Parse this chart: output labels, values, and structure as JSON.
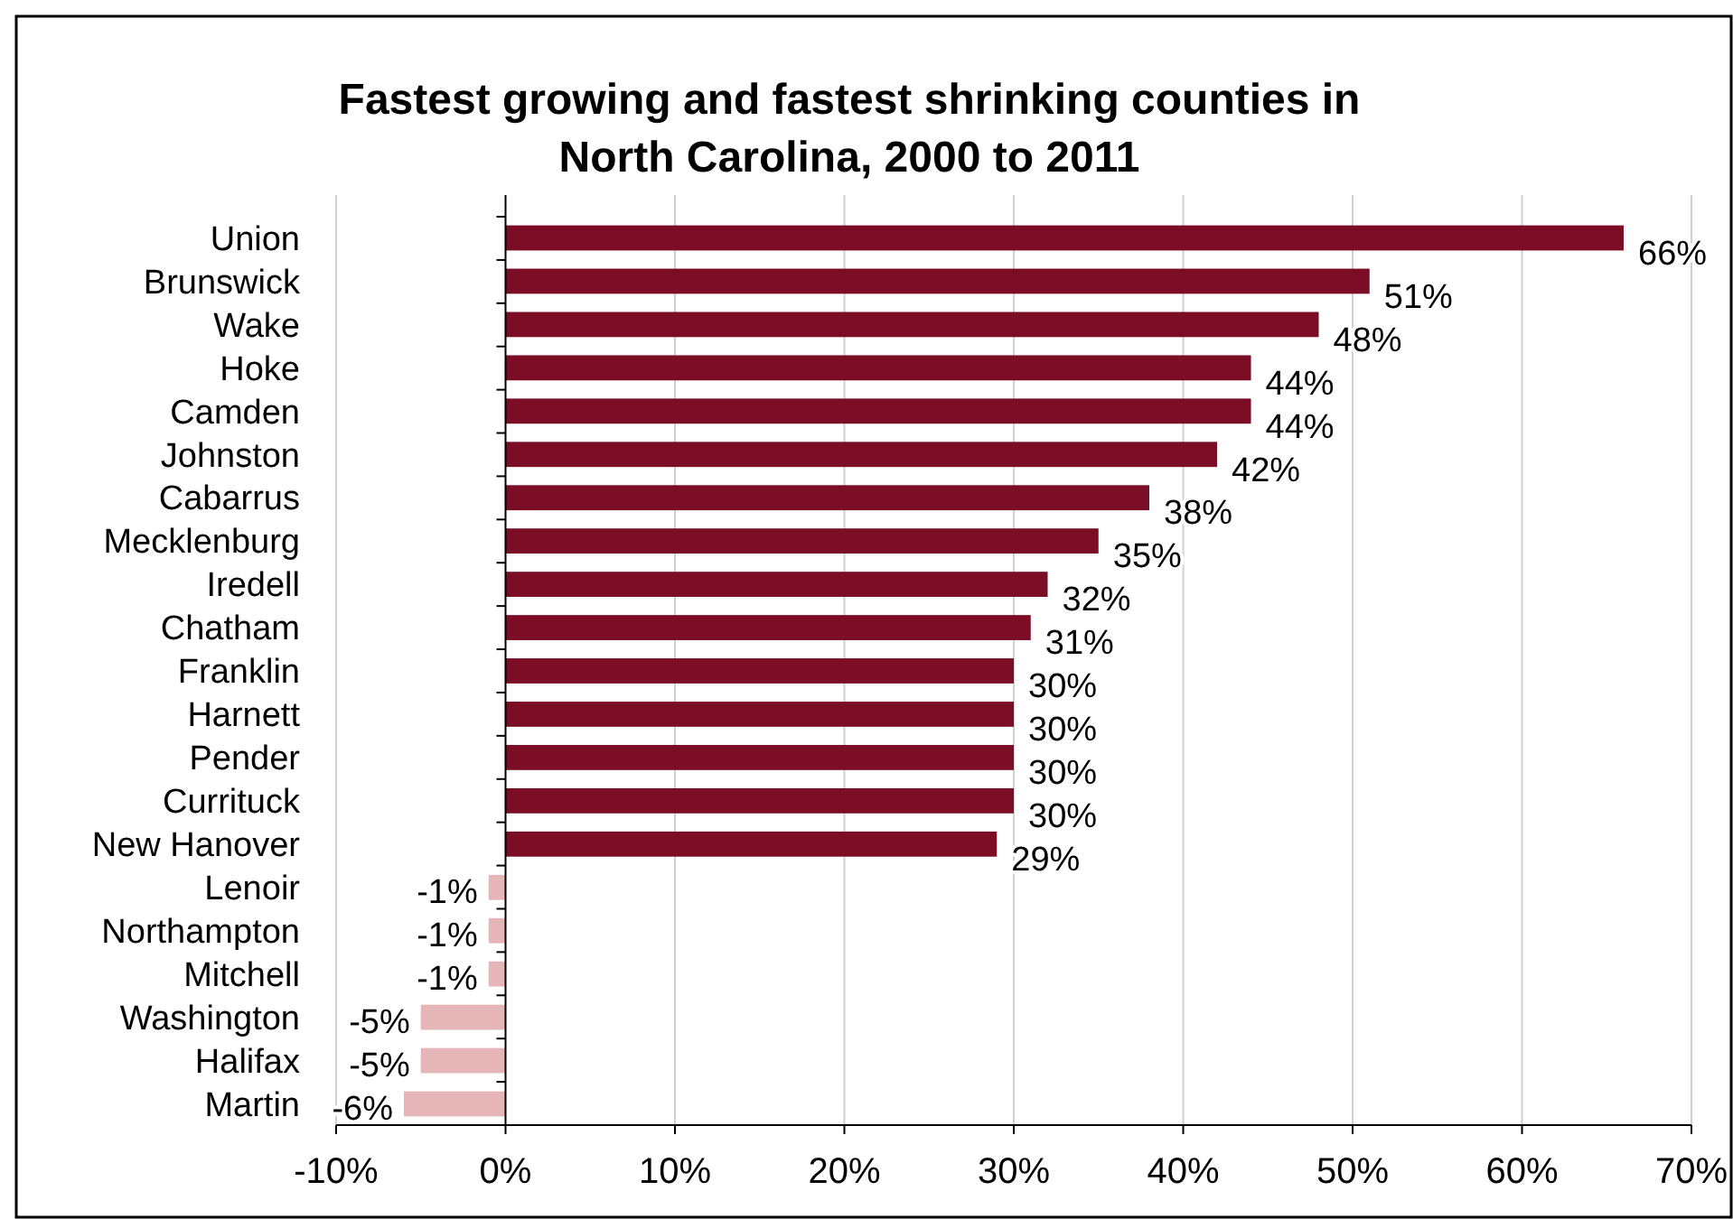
{
  "chart_data": {
    "type": "bar",
    "orientation": "horizontal",
    "title": "Fastest growing and fastest shrinking counties in North Carolina, 2000 to 2011",
    "categories": [
      "Union",
      "Brunswick",
      "Wake",
      "Hoke",
      "Camden",
      "Johnston",
      "Cabarrus",
      "Mecklenburg",
      "Iredell",
      "Chatham",
      "Franklin",
      "Harnett",
      "Pender",
      "Currituck",
      "New Hanover",
      "Lenoir",
      "Northampton",
      "Mitchell",
      "Washington",
      "Halifax",
      "Martin"
    ],
    "values": [
      66,
      51,
      48,
      44,
      44,
      42,
      38,
      35,
      32,
      31,
      30,
      30,
      30,
      30,
      29,
      -1,
      -1,
      -1,
      -5,
      -5,
      -6
    ],
    "value_labels": [
      "66%",
      "51%",
      "48%",
      "44%",
      "44%",
      "42%",
      "38%",
      "35%",
      "32%",
      "31%",
      "30%",
      "30%",
      "30%",
      "30%",
      "29%",
      "-1%",
      "-1%",
      "-1%",
      "-5%",
      "-5%",
      "-6%"
    ],
    "colors": [
      "#7b0d27",
      "#7b0d27",
      "#7b0d27",
      "#7b0d27",
      "#7b0d27",
      "#7b0d27",
      "#7b0d27",
      "#7b0d27",
      "#7b0d27",
      "#7b0d27",
      "#7b0d27",
      "#7b0d27",
      "#7b0d27",
      "#7b0d27",
      "#7b0d27",
      "#e6b5b7",
      "#e6b5b7",
      "#e6b5b7",
      "#e6b5b7",
      "#e6b5b7",
      "#e6b5b7"
    ],
    "xlim": [
      -10,
      70
    ],
    "xticks": [
      {
        "value": -10,
        "label": "-10%"
      },
      {
        "value": 0,
        "label": "0%"
      },
      {
        "value": 10,
        "label": "10%"
      },
      {
        "value": 20,
        "label": "20%"
      },
      {
        "value": 30,
        "label": "30%"
      },
      {
        "value": 40,
        "label": "40%"
      },
      {
        "value": 50,
        "label": "50%"
      },
      {
        "value": 60,
        "label": "60%"
      },
      {
        "value": 70,
        "label": "70%"
      }
    ],
    "grid": "x"
  }
}
